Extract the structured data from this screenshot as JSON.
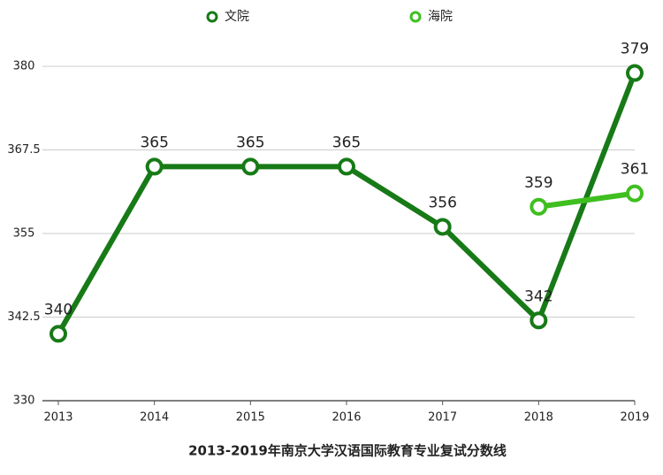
{
  "chart_data": {
    "type": "line",
    "title": "2013-2019年南京大学汉语国际教育专业复试分数线",
    "categories": [
      "2013",
      "2014",
      "2015",
      "2016",
      "2017",
      "2018",
      "2019"
    ],
    "series": [
      {
        "name": "文院",
        "color": "#177a17",
        "values": [
          340,
          365,
          365,
          365,
          356,
          342,
          379
        ]
      },
      {
        "name": "海院",
        "color": "#3fbf1f",
        "values": [
          null,
          null,
          null,
          null,
          null,
          359,
          361
        ]
      }
    ],
    "ylim": [
      330,
      380
    ],
    "yticks": [
      330,
      342.5,
      355,
      367.5,
      380
    ],
    "grid": true
  }
}
